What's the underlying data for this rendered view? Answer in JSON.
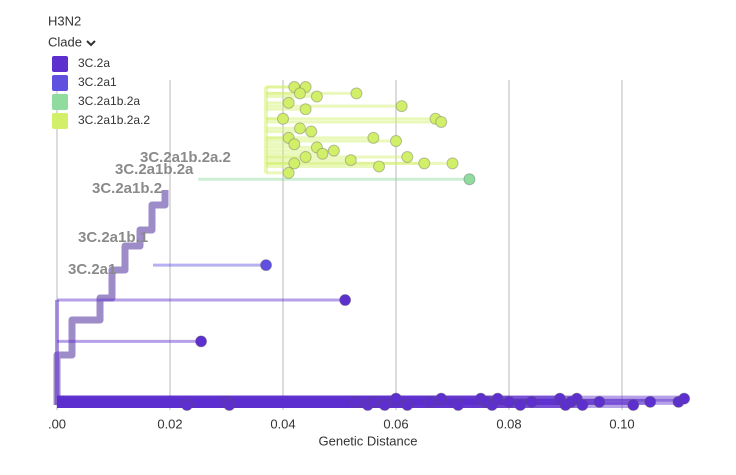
{
  "chart_data": {
    "type": "phylogeny",
    "title": "H3N2",
    "color_by": "Clade",
    "xlabel": "Genetic Distance",
    "xlim": [
      0,
      0.112
    ],
    "xticks": [
      {
        "value": 0,
        "label": ".00"
      },
      0.02,
      0.04,
      0.06,
      0.08,
      {
        "value": 0.1,
        "label": "0.10"
      }
    ],
    "ylim": [
      0,
      100
    ],
    "grid": true,
    "clade_labels": [
      "3C.2a1",
      "3C.2a1b.1",
      "3C.2a1b.2",
      "3C.2a1b.2a",
      "3C.2a1b.2a.2"
    ],
    "series": [
      {
        "name": "3C.2a",
        "color": "#5d2fcf",
        "stem": 0,
        "x": [
          0.023,
          0.03,
          0.0305,
          0.053,
          0.055,
          0.056,
          0.058,
          0.06,
          0.062,
          0.066,
          0.068,
          0.071,
          0.075,
          0.076,
          0.077,
          0.078,
          0.08,
          0.082,
          0.084,
          0.089,
          0.09,
          0.091,
          0.092,
          0.093,
          0.096,
          0.102,
          0.105,
          0.11,
          0.111,
          0.0255,
          0.051
        ],
        "y": [
          0,
          1,
          0,
          1,
          0,
          1,
          0,
          2,
          0,
          1,
          2,
          0,
          2,
          1,
          0,
          2,
          1,
          0,
          1,
          2,
          0,
          1,
          2,
          0,
          1,
          0,
          1,
          1,
          2,
          20,
          33
        ]
      },
      {
        "name": "3C.2a1",
        "color": "#6050e0",
        "stem": 0.017,
        "x": [
          0.037
        ],
        "y": [
          44
        ]
      },
      {
        "name": "3C.2a1b.2a",
        "color": "#8fdc9e",
        "stem": 0.025,
        "x": [
          0.073
        ],
        "y": [
          71
        ]
      },
      {
        "name": "3C.2a1b.2a.2",
        "color": "#d2ef6a",
        "stem": 0.037,
        "x": [
          0.042,
          0.044,
          0.043,
          0.046,
          0.053,
          0.061,
          0.041,
          0.044,
          0.04,
          0.067,
          0.068,
          0.056,
          0.06,
          0.043,
          0.045,
          0.041,
          0.042,
          0.046,
          0.049,
          0.062,
          0.07,
          0.052,
          0.057,
          0.044,
          0.042,
          0.041,
          0.065,
          0.047
        ],
        "y": [
          100,
          100,
          98,
          97,
          98,
          94,
          95,
          93,
          90,
          90,
          89,
          84,
          83,
          87,
          86,
          84,
          82,
          81,
          80,
          78,
          76,
          77,
          75,
          78,
          76,
          73,
          76,
          79
        ]
      }
    ]
  }
}
